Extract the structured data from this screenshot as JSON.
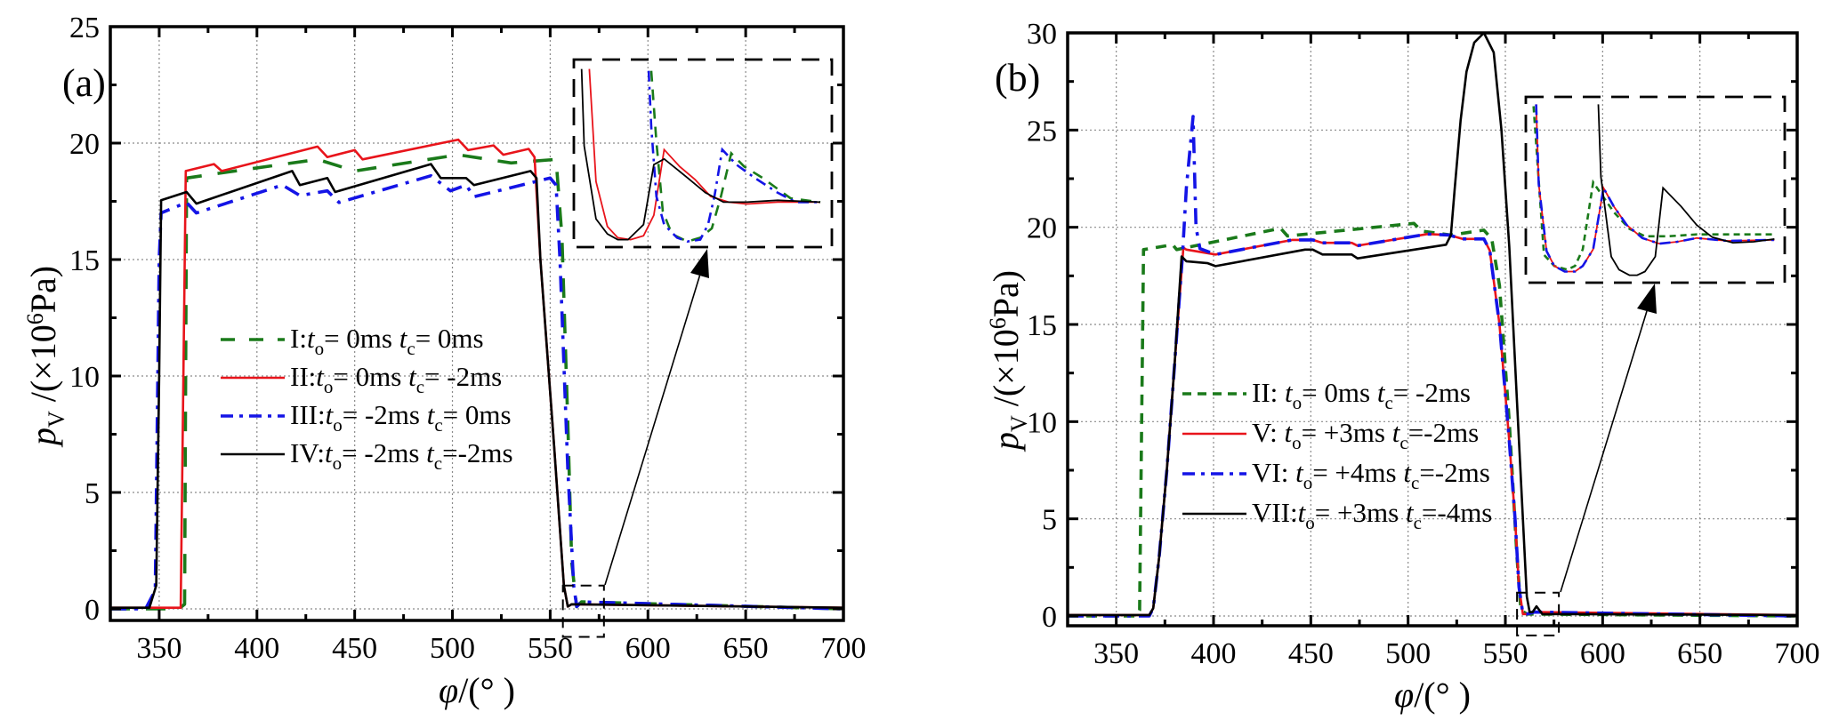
{
  "chart_data": [
    {
      "type": "line",
      "panel_label": "(a)",
      "xlabel": "φ/(°)",
      "xlabel_parts": {
        "symbol": "φ",
        "unit": "/(°  )"
      },
      "ylabel_parts": {
        "symbol": "p",
        "sub": "V",
        "unit_prefix": " /(×10",
        "sup": "6",
        "unit_suffix": "Pa)"
      },
      "xlim": [
        325,
        700
      ],
      "ylim": [
        0,
        25
      ],
      "xticks": [
        350,
        400,
        450,
        500,
        550,
        600,
        650,
        700
      ],
      "yticks": [
        0,
        5,
        10,
        15,
        20,
        25
      ],
      "grid": true,
      "legend_position": "center-left",
      "series": [
        {
          "name": "I",
          "label_parts": [
            "I:",
            "t",
            "o",
            "= 0ms  ",
            "t",
            "c",
            "= 0ms"
          ],
          "color": "#1a7a1a",
          "style": "dashed",
          "x": [
            325,
            360,
            363,
            364,
            380,
            431,
            450,
            503,
            530,
            553,
            556,
            559,
            561,
            563.5,
            566,
            700
          ],
          "y": [
            0,
            0,
            0.2,
            18.5,
            18.7,
            19.3,
            18.8,
            19.5,
            19.15,
            19.3,
            16,
            8,
            2,
            0.1,
            0.3,
            0
          ]
        },
        {
          "name": "II",
          "label_parts": [
            "II:",
            "t",
            "o",
            "= 0ms  ",
            "t",
            "c",
            "= -2ms"
          ],
          "color": "#e8141b",
          "style": "solid",
          "x": [
            325,
            361,
            363.6,
            378,
            382,
            431,
            436,
            450,
            454,
            503,
            508,
            521,
            526,
            539,
            542,
            545,
            552,
            557,
            559,
            561,
            700
          ],
          "y": [
            0.05,
            0.05,
            18.8,
            19.1,
            18.8,
            19.85,
            19.4,
            19.7,
            19.3,
            20.15,
            19.7,
            19.9,
            19.5,
            19.75,
            19.4,
            15,
            7,
            1,
            0.1,
            0.2,
            0.05
          ]
        },
        {
          "name": "III",
          "label_parts": [
            "III:",
            "t",
            "o",
            "= -2ms ",
            "t",
            "c",
            "= 0ms"
          ],
          "color": "#1414e6",
          "style": "dashdot",
          "x": [
            325,
            343,
            348,
            350,
            351,
            364,
            369,
            413,
            422,
            436,
            442,
            489,
            499,
            507,
            511,
            550,
            553,
            555,
            559,
            562,
            563.6,
            566,
            700
          ],
          "y": [
            0,
            0,
            0.8,
            15,
            17.0,
            17.45,
            17.0,
            18.2,
            17.75,
            17.95,
            17.45,
            18.6,
            17.95,
            18.2,
            17.7,
            18.5,
            18.2,
            15,
            6,
            1,
            0.1,
            0.3,
            0
          ]
        },
        {
          "name": "IV",
          "label_parts": [
            "IV:",
            "t",
            "o",
            "= -2ms ",
            "t",
            "c",
            "=-2ms"
          ],
          "color": "#000000",
          "style": "solid",
          "x": [
            325,
            345,
            348.5,
            350,
            351,
            364,
            369,
            418,
            422,
            436,
            440,
            489,
            494,
            507,
            511,
            540,
            543,
            545,
            552,
            557,
            559,
            561,
            700
          ],
          "y": [
            0.05,
            0.05,
            1,
            10,
            17.55,
            17.9,
            17.4,
            18.8,
            18.2,
            18.5,
            17.9,
            19.1,
            18.5,
            18.5,
            18.2,
            18.8,
            18.5,
            15,
            7,
            1,
            0.1,
            0.2,
            0.05
          ]
        }
      ],
      "zoom_box": {
        "x": [
          556.5,
          577.5
        ],
        "y": [
          -1.2,
          1.0
        ]
      },
      "inset": {
        "note": "magnified view of zoom box; normalized coordinates (0-1)",
        "series": [
          {
            "name": "I",
            "u": [
              0.3,
              0.32,
              0.345,
              0.38,
              0.44,
              0.49,
              0.535,
              0.57,
              0.61,
              0.66,
              0.73,
              0.84,
              0.955
            ],
            "v": [
              0.94,
              0.56,
              0.19,
              0.07,
              0.03,
              0.05,
              0.1,
              0.27,
              0.5,
              0.43,
              0.37,
              0.26,
              0.24
            ]
          },
          {
            "name": "II",
            "u": [
              0.06,
              0.086,
              0.13,
              0.17,
              0.22,
              0.27,
              0.31,
              0.35,
              0.41,
              0.47,
              0.53,
              0.6,
              0.67,
              0.79,
              0.955
            ],
            "v": [
              0.95,
              0.35,
              0.11,
              0.05,
              0.04,
              0.06,
              0.17,
              0.52,
              0.43,
              0.36,
              0.27,
              0.24,
              0.23,
              0.24,
              0.24
            ]
          },
          {
            "name": "III",
            "u": [
              0.29,
              0.3,
              0.32,
              0.35,
              0.4,
              0.44,
              0.49,
              0.52,
              0.545,
              0.575,
              0.63,
              0.7,
              0.79,
              0.86,
              0.955
            ],
            "v": [
              0.94,
              0.64,
              0.27,
              0.12,
              0.05,
              0.03,
              0.04,
              0.12,
              0.27,
              0.52,
              0.44,
              0.37,
              0.29,
              0.24,
              0.24
            ]
          },
          {
            "name": "IV",
            "u": [
              0.03,
              0.04,
              0.086,
              0.13,
              0.17,
              0.21,
              0.27,
              0.31,
              0.35,
              0.44,
              0.51,
              0.58,
              0.67,
              0.79,
              0.955
            ],
            "v": [
              0.95,
              0.54,
              0.15,
              0.07,
              0.04,
              0.04,
              0.12,
              0.44,
              0.47,
              0.37,
              0.29,
              0.24,
              0.24,
              0.25,
              0.24
            ]
          }
        ]
      }
    },
    {
      "type": "line",
      "panel_label": "(b)",
      "xlabel": "φ/(°)",
      "xlabel_parts": {
        "symbol": "φ",
        "unit": "/(°  )"
      },
      "ylabel_parts": {
        "symbol": "p",
        "sub": "V",
        "unit_prefix": " /(×10",
        "sup": "6",
        "unit_suffix": "Pa)"
      },
      "xlim": [
        325,
        700
      ],
      "ylim": [
        0,
        30
      ],
      "xticks": [
        350,
        400,
        450,
        500,
        550,
        600,
        650,
        700
      ],
      "yticks": [
        0,
        5,
        10,
        15,
        20,
        25,
        30
      ],
      "grid": true,
      "legend_position": "center-left",
      "series": [
        {
          "name": "II",
          "label_parts": [
            "II:  ",
            "t",
            "o",
            "=  0ms ",
            "t",
            "c",
            "= -2ms"
          ],
          "color": "#1a7a1a",
          "style": "dotted-dash",
          "x": [
            325,
            360,
            362,
            364,
            379,
            381,
            434.5,
            438,
            503,
            507,
            522,
            539,
            543,
            547,
            552,
            556,
            558,
            561,
            700
          ],
          "y": [
            0,
            0,
            0.3,
            18.85,
            19.1,
            18.85,
            19.95,
            19.55,
            20.2,
            19.8,
            19.6,
            19.85,
            19.4,
            17,
            10,
            3,
            0.3,
            0.1,
            0
          ]
        },
        {
          "name": "V",
          "label_parts": [
            "V:  ",
            "t",
            "o",
            "= +3ms ",
            "t",
            "c",
            "=-2ms"
          ],
          "color": "#e8141b",
          "style": "solid",
          "x": [
            325,
            367,
            369,
            372,
            376,
            380,
            384.5,
            386,
            401,
            440.5,
            451,
            456,
            471,
            474,
            510,
            521,
            528,
            539,
            542,
            547,
            552,
            555,
            557,
            559,
            561,
            565,
            700
          ],
          "y": [
            0.05,
            0.05,
            0.4,
            3,
            7.5,
            13,
            18.95,
            18.85,
            18.6,
            19.35,
            19.35,
            19.2,
            19.2,
            19.05,
            19.65,
            19.6,
            19.4,
            19.4,
            18.8,
            15,
            9,
            5,
            1.5,
            0.1,
            0.1,
            0.2,
            0.05
          ]
        },
        {
          "name": "VI",
          "label_parts": [
            "VI: ",
            "t",
            "o",
            "= +4ms ",
            "t",
            "c",
            "=-2ms"
          ],
          "color": "#1414e6",
          "style": "dashdot",
          "x": [
            325,
            367,
            369,
            372,
            376,
            380,
            384,
            386,
            389.5,
            391,
            393,
            401,
            440.5,
            451,
            456,
            471,
            474,
            510,
            521,
            528,
            539,
            542,
            547,
            552,
            555,
            557,
            559,
            561,
            565,
            700
          ],
          "y": [
            0,
            0,
            0.4,
            3,
            7.5,
            13,
            18.5,
            22,
            25.7,
            20,
            18.9,
            18.6,
            19.35,
            19.35,
            19.2,
            19.2,
            19.05,
            19.65,
            19.6,
            19.4,
            19.4,
            18.8,
            15,
            9,
            5,
            1.5,
            0.1,
            0.1,
            0.2,
            0
          ]
        },
        {
          "name": "VII",
          "label_parts": [
            "VII:",
            "t",
            "o",
            "= +3ms ",
            "t",
            "c",
            "=-4ms"
          ],
          "color": "#000000",
          "style": "solid",
          "x": [
            325,
            367,
            369,
            372,
            376,
            380,
            383.6,
            386,
            397,
            401,
            447,
            451,
            456,
            471,
            474,
            519.5,
            522,
            524,
            527,
            530,
            534,
            539,
            544,
            548,
            552,
            556,
            559,
            561,
            562.5,
            564,
            566,
            569,
            700
          ],
          "y": [
            0.05,
            0.05,
            0.4,
            3,
            7.5,
            13,
            18.5,
            18.25,
            18.15,
            18.0,
            18.85,
            18.85,
            18.6,
            18.6,
            18.4,
            19.1,
            19.6,
            22,
            25.5,
            28,
            29.5,
            30,
            29,
            25,
            19,
            11,
            5,
            1,
            0.2,
            0.2,
            0.5,
            0.1,
            0.05
          ]
        }
      ],
      "zoom_box": {
        "x": [
          556,
          577.5
        ],
        "y": [
          -1.0,
          1.2
        ]
      },
      "inset": {
        "note": "magnified view of zoom box; normalized coordinates (0-1)",
        "series": [
          {
            "name": "II",
            "u": [
              0.03,
              0.05,
              0.07,
              0.11,
              0.16,
              0.19,
              0.22,
              0.26,
              0.29,
              0.34,
              0.4,
              0.46,
              0.55,
              0.66,
              0.96
            ],
            "v": [
              0.95,
              0.55,
              0.15,
              0.09,
              0.07,
              0.09,
              0.18,
              0.54,
              0.48,
              0.38,
              0.29,
              0.25,
              0.25,
              0.26,
              0.26
            ]
          },
          {
            "name": "V",
            "u": [
              0.04,
              0.05,
              0.08,
              0.11,
              0.15,
              0.19,
              0.22,
              0.26,
              0.3,
              0.34,
              0.39,
              0.45,
              0.515,
              0.585,
              0.66,
              0.78,
              0.96
            ],
            "v": [
              0.96,
              0.53,
              0.17,
              0.09,
              0.06,
              0.06,
              0.09,
              0.18,
              0.51,
              0.41,
              0.31,
              0.24,
              0.21,
              0.22,
              0.24,
              0.225,
              0.23
            ]
          },
          {
            "name": "VI",
            "u": [
              0.04,
              0.05,
              0.08,
              0.11,
              0.15,
              0.19,
              0.22,
              0.26,
              0.3,
              0.34,
              0.39,
              0.45,
              0.515,
              0.585,
              0.66,
              0.78,
              0.96
            ],
            "v": [
              0.96,
              0.53,
              0.17,
              0.09,
              0.06,
              0.06,
              0.09,
              0.18,
              0.51,
              0.41,
              0.31,
              0.24,
              0.21,
              0.22,
              0.24,
              0.225,
              0.23
            ]
          },
          {
            "name": "VII",
            "u": [
              0.28,
              0.29,
              0.33,
              0.36,
              0.4,
              0.43,
              0.46,
              0.5,
              0.53,
              0.6,
              0.66,
              0.72,
              0.8,
              0.88,
              0.96
            ],
            "v": [
              0.96,
              0.57,
              0.14,
              0.07,
              0.04,
              0.04,
              0.06,
              0.14,
              0.51,
              0.41,
              0.31,
              0.245,
              0.215,
              0.22,
              0.235
            ]
          }
        ]
      }
    }
  ]
}
